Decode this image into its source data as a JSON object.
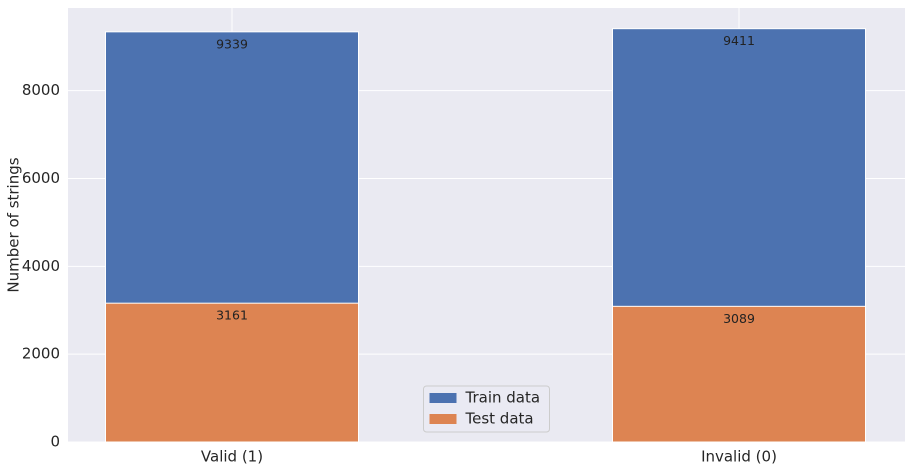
{
  "chart_data": {
    "type": "bar",
    "ylabel": "Number of strings",
    "categories": [
      "Valid (1)",
      "Invalid (0)"
    ],
    "series": [
      {
        "name": "Train data",
        "color": "#4c72b0",
        "values": [
          9339,
          9411
        ]
      },
      {
        "name": "Test data",
        "color": "#dd8452",
        "values": [
          3161,
          3089
        ]
      }
    ],
    "ylim": [
      0,
      9882
    ],
    "yticks": [
      0,
      2000,
      4000,
      6000,
      8000
    ],
    "grid": true,
    "legend": "lower center"
  }
}
